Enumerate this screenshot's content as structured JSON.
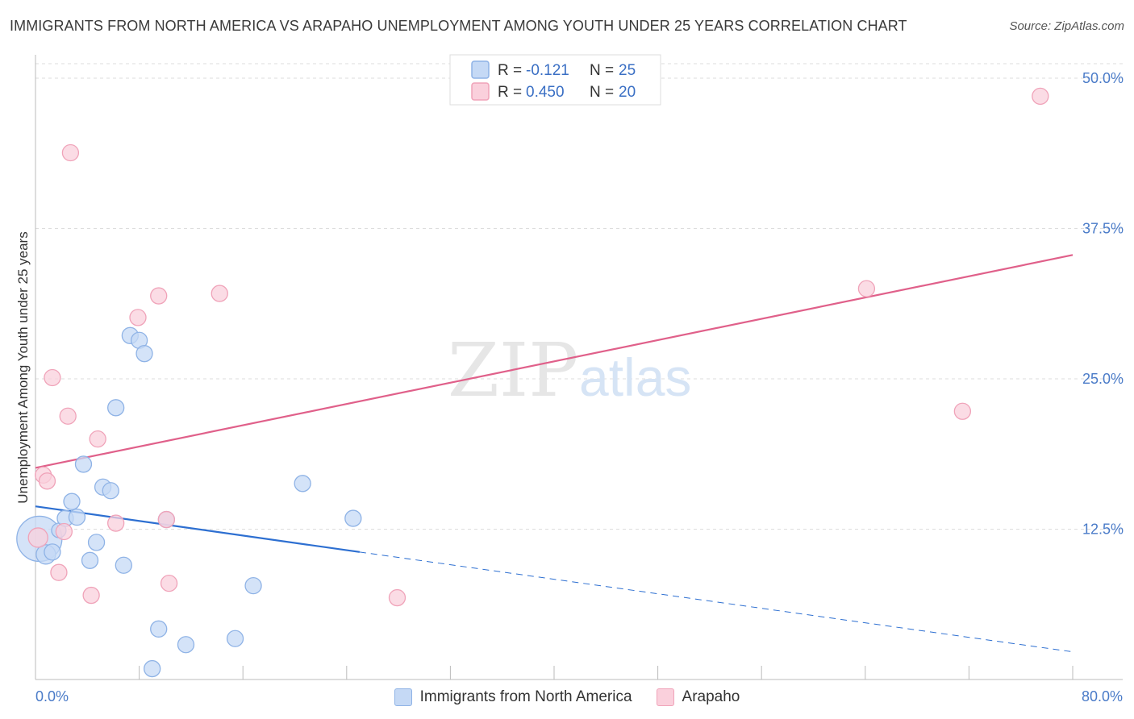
{
  "header": {
    "title": "IMMIGRANTS FROM NORTH AMERICA VS ARAPAHO UNEMPLOYMENT AMONG YOUTH UNDER 25 YEARS CORRELATION CHART",
    "source": "Source: ZipAtlas.com"
  },
  "watermark": {
    "zip": "ZIP",
    "atlas": "atlas"
  },
  "colors": {
    "blue_fill": "#c5d9f5",
    "blue_stroke": "#8fb3e6",
    "blue_line": "#2d6fd1",
    "pink_fill": "#fad0dc",
    "pink_stroke": "#f0a3b9",
    "pink_line": "#e0608a",
    "grid": "#dddddd",
    "tick_text": "#4a7bc8"
  },
  "legend": {
    "rows": [
      {
        "r_label": "R =",
        "r_value": "-0.121",
        "n_label": "N =",
        "n_value": "25"
      },
      {
        "r_label": "R =",
        "r_value": "0.450",
        "n_label": "N =",
        "n_value": "20"
      }
    ]
  },
  "bottom_legend": {
    "blue": "Immigrants from North America",
    "pink": "Arapaho"
  },
  "chart_data": {
    "type": "scatter",
    "title": "IMMIGRANTS FROM NORTH AMERICA VS ARAPAHO UNEMPLOYMENT AMONG YOUTH UNDER 25 YEARS CORRELATION CHART",
    "xlabel": "",
    "ylabel": "Unemployment Among Youth under 25 years",
    "xlim": [
      0,
      80
    ],
    "ylim": [
      0,
      50
    ],
    "x_tick_labels": [
      {
        "value": 0,
        "label": "0.0%"
      },
      {
        "value": 80,
        "label": "80.0%"
      }
    ],
    "y_tick_labels": [
      {
        "value": 12.5,
        "label": "12.5%"
      },
      {
        "value": 25,
        "label": "25.0%"
      },
      {
        "value": 37.5,
        "label": "37.5%"
      },
      {
        "value": 50,
        "label": "50.0%"
      }
    ],
    "x_minor_ticks": [
      8,
      16,
      24,
      32,
      40,
      48,
      56,
      64,
      72,
      80
    ],
    "series": [
      {
        "name": "Immigrants from North America",
        "color": "#c5d9f5",
        "points": [
          [
            0.3,
            11.7
          ],
          [
            0.8,
            10.4
          ],
          [
            1.3,
            10.6
          ],
          [
            1.8,
            12.4
          ],
          [
            2.3,
            13.4
          ],
          [
            2.8,
            14.8
          ],
          [
            3.2,
            13.5
          ],
          [
            3.7,
            17.9
          ],
          [
            4.2,
            9.9
          ],
          [
            4.7,
            11.4
          ],
          [
            5.2,
            16.0
          ],
          [
            5.8,
            15.7
          ],
          [
            6.2,
            22.6
          ],
          [
            6.8,
            9.5
          ],
          [
            7.3,
            28.6
          ],
          [
            8.0,
            28.2
          ],
          [
            8.4,
            27.1
          ],
          [
            9.0,
            0.9
          ],
          [
            9.5,
            4.2
          ],
          [
            10.1,
            13.3
          ],
          [
            11.6,
            2.9
          ],
          [
            15.4,
            3.4
          ],
          [
            16.8,
            7.8
          ],
          [
            20.6,
            16.3
          ],
          [
            24.5,
            13.4
          ]
        ],
        "sizes": [
          28,
          12,
          10,
          9,
          10,
          10,
          10,
          10,
          10,
          10,
          10,
          10,
          10,
          10,
          10,
          10,
          10,
          10,
          10,
          10,
          10,
          10,
          10,
          10,
          10
        ],
        "trend": {
          "x_start": 0,
          "y_start": 14.4,
          "x_solid_end": 25,
          "y_solid_end": 10.6,
          "x_end": 80,
          "y_end": 2.3
        }
      },
      {
        "name": "Arapaho",
        "color": "#fad0dc",
        "points": [
          [
            0.2,
            11.8
          ],
          [
            0.6,
            17.0
          ],
          [
            0.9,
            16.5
          ],
          [
            1.3,
            25.1
          ],
          [
            1.8,
            8.9
          ],
          [
            2.2,
            12.3
          ],
          [
            2.5,
            21.9
          ],
          [
            2.7,
            43.8
          ],
          [
            4.3,
            7.0
          ],
          [
            4.8,
            20.0
          ],
          [
            6.2,
            13.0
          ],
          [
            7.9,
            30.1
          ],
          [
            9.5,
            31.9
          ],
          [
            10.1,
            13.3
          ],
          [
            10.3,
            8.0
          ],
          [
            14.2,
            32.1
          ],
          [
            27.9,
            6.8
          ],
          [
            64.1,
            32.5
          ],
          [
            71.5,
            22.3
          ],
          [
            77.5,
            48.5
          ]
        ],
        "sizes": [
          12,
          10,
          10,
          10,
          10,
          10,
          10,
          10,
          10,
          10,
          10,
          10,
          10,
          10,
          10,
          10,
          10,
          10,
          10,
          10
        ],
        "trend": {
          "x_start": 0,
          "y_start": 17.6,
          "x_end": 80,
          "y_end": 35.3
        }
      }
    ]
  }
}
